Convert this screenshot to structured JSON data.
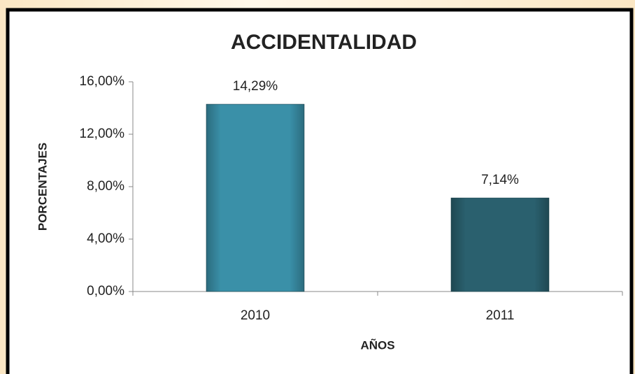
{
  "chart_data": {
    "type": "bar",
    "title": "ACCIDENTALIDAD",
    "x_label": "AÑOS",
    "y_label": "PORCENTAJES",
    "categories": [
      "2010",
      "2011"
    ],
    "values": [
      14.29,
      7.14
    ],
    "value_labels": [
      "14,29%",
      "7,14%"
    ],
    "colors": [
      "#3a90a8",
      "#2a606e"
    ],
    "ylim": [
      0,
      16
    ],
    "yticks": [
      {
        "value": 0,
        "label": "0,00%"
      },
      {
        "value": 4,
        "label": "4,00%"
      },
      {
        "value": 8,
        "label": "8,00%"
      },
      {
        "value": 12,
        "label": "12,00%"
      },
      {
        "value": 16,
        "label": "16,00%"
      }
    ]
  }
}
